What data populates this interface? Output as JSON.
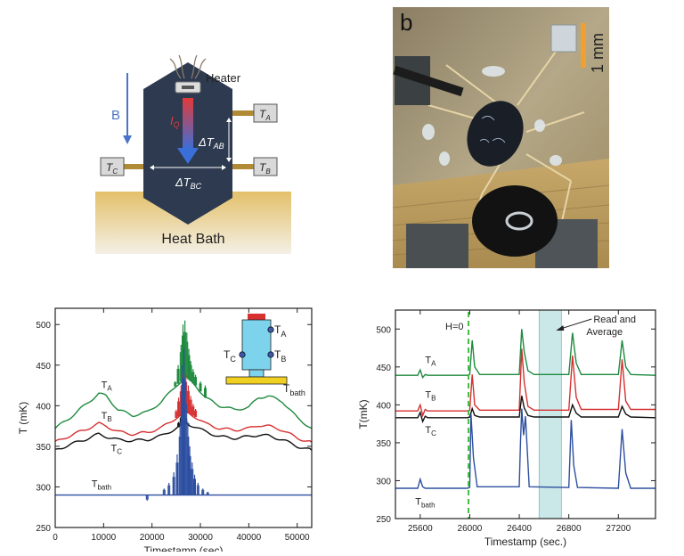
{
  "schematic": {
    "heater_label": "Heater",
    "field_label": "B",
    "heat_flow_label": "I",
    "heat_flow_sub": "Q",
    "thermometers": [
      {
        "name": "T",
        "sub": "A"
      },
      {
        "name": "T",
        "sub": "B"
      },
      {
        "name": "T",
        "sub": "C"
      }
    ],
    "delta_ab": {
      "name": "ΔT",
      "sub": "AB"
    },
    "delta_bc": {
      "name": "ΔT",
      "sub": "BC"
    },
    "heat_bath_label": "Heat Bath",
    "colors": {
      "body": "#2d3a4f",
      "arrow_top": "#e23a3a",
      "arrow_bottom": "#3a6fd8",
      "field_arrow": "#4a74c9",
      "link": "#b08a35",
      "bath_top": "#e3c06a",
      "bath_bottom": "#f4f0e6"
    }
  },
  "photo": {
    "panel_letter": "b",
    "scale_label": "1 mm",
    "colors": {
      "scale_bar": "#f0a030"
    }
  },
  "chart_data": [
    {
      "type": "line",
      "xlabel": "Timestamp (sec)",
      "ylabel": "T (mK)",
      "xlim": [
        0,
        53000
      ],
      "ylim": [
        250,
        520
      ],
      "xticks": [
        0,
        10000,
        20000,
        30000,
        40000,
        50000
      ],
      "xtick_labels": [
        "0",
        "10000",
        "20000",
        "30000",
        "40000",
        "50000"
      ],
      "yticks": [
        250,
        300,
        350,
        400,
        450,
        500
      ],
      "ytick_labels": [
        "250",
        "300",
        "350",
        "400",
        "450",
        "500"
      ],
      "inset": {
        "labels": [
          {
            "name": "T",
            "sub": "A"
          },
          {
            "name": "T",
            "sub": "C"
          },
          {
            "name": "T",
            "sub": "B"
          },
          {
            "name": "T",
            "sub": "bath"
          }
        ]
      },
      "series": [
        {
          "name": "T",
          "sub": "A",
          "color": "#1e8a3e",
          "x": [
            0,
            3000,
            6000,
            9000,
            10500,
            13000,
            16000,
            19000,
            22000,
            25000,
            27000,
            29000,
            31000,
            34000,
            37000,
            40000,
            42000,
            44000,
            47000,
            50000,
            53000
          ],
          "y": [
            372,
            385,
            400,
            415,
            412,
            395,
            388,
            392,
            405,
            425,
            435,
            425,
            410,
            400,
            395,
            398,
            410,
            412,
            405,
            385,
            372
          ],
          "peaks": [
            [
              24800,
              430
            ],
            [
              25400,
              450
            ],
            [
              26000,
              475
            ],
            [
              26400,
              500
            ],
            [
              26800,
              505
            ],
            [
              27200,
              490
            ],
            [
              27600,
              470
            ],
            [
              28000,
              455
            ],
            [
              28500,
              445
            ],
            [
              29000,
              438
            ],
            [
              30000,
              430
            ],
            [
              31000,
              425
            ]
          ],
          "label_at": [
            9500,
            422
          ]
        },
        {
          "name": "T",
          "sub": "B",
          "color": "#d63030",
          "x": [
            0,
            3000,
            6000,
            9000,
            10500,
            13000,
            16000,
            19000,
            22000,
            25000,
            27000,
            29000,
            31000,
            34000,
            37000,
            40000,
            42000,
            44000,
            47000,
            50000,
            53000
          ],
          "y": [
            355,
            363,
            370,
            378,
            375,
            368,
            365,
            367,
            373,
            385,
            392,
            386,
            378,
            372,
            370,
            372,
            376,
            375,
            370,
            360,
            355
          ],
          "peaks": [
            [
              25000,
              395
            ],
            [
              25500,
              410
            ],
            [
              26000,
              425
            ],
            [
              26500,
              440
            ],
            [
              27000,
              438
            ],
            [
              27500,
              425
            ],
            [
              28000,
              412
            ],
            [
              28500,
              402
            ],
            [
              29000,
              396
            ]
          ],
          "label_at": [
            9500,
            384
          ]
        },
        {
          "name": "T",
          "sub": "C",
          "color": "#111111",
          "x": [
            0,
            3000,
            6000,
            9000,
            10500,
            13000,
            16000,
            19000,
            22000,
            25000,
            27000,
            29000,
            31000,
            34000,
            37000,
            40000,
            42000,
            44000,
            47000,
            50000,
            53000
          ],
          "y": [
            345,
            352,
            358,
            365,
            362,
            358,
            357,
            358,
            363,
            372,
            378,
            374,
            368,
            362,
            360,
            362,
            364,
            363,
            358,
            350,
            345
          ],
          "peaks": [
            [
              25500,
              380
            ],
            [
              26000,
              388
            ],
            [
              26500,
              392
            ],
            [
              27000,
              385
            ],
            [
              27500,
              378
            ]
          ],
          "label_at": [
            11500,
            344
          ]
        },
        {
          "name": "T",
          "sub": "bath",
          "color": "#2d4fa0",
          "x": [
            0,
            53000
          ],
          "y": [
            290,
            290
          ],
          "peaks": [
            [
              22500,
              298
            ],
            [
              23500,
              305
            ],
            [
              24500,
              318
            ],
            [
              25200,
              340
            ],
            [
              25800,
              380
            ],
            [
              26200,
              450
            ],
            [
              26600,
              470
            ],
            [
              27000,
              430
            ],
            [
              27400,
              380
            ],
            [
              27800,
              350
            ],
            [
              28300,
              330
            ],
            [
              28800,
              315
            ],
            [
              29500,
              305
            ],
            [
              30500,
              298
            ],
            [
              31500,
              294
            ],
            [
              19000,
              283
            ]
          ],
          "label_at": [
            7500,
            300
          ]
        }
      ]
    },
    {
      "type": "line",
      "xlabel": "Timestamp (sec.)",
      "ylabel": "T(mK)",
      "xlim": [
        25400,
        27500
      ],
      "ylim": [
        250,
        525
      ],
      "xticks": [
        25600,
        26000,
        26400,
        26800,
        27200
      ],
      "xtick_labels": [
        "25600",
        "26000",
        "26400",
        "26800",
        "27200"
      ],
      "yticks": [
        250,
        300,
        350,
        400,
        450,
        500
      ],
      "ytick_labels": [
        "250",
        "300",
        "350",
        "400",
        "450",
        "500"
      ],
      "marker_line": {
        "label": "H=0",
        "x": 25990,
        "color": "#44bb44"
      },
      "highlight": {
        "label": "Read and Average",
        "x0": 26560,
        "x1": 26740,
        "color": "#bfe3e3"
      },
      "series": [
        {
          "name": "T",
          "sub": "A",
          "color": "#1e8a3e",
          "x": [
            25400,
            25580,
            25600,
            25620,
            25640,
            25660,
            25700,
            25980,
            26000,
            26020,
            26040,
            26080,
            26400,
            26420,
            26440,
            26470,
            26520,
            26800,
            26830,
            26860,
            26900,
            27200,
            27230,
            27260,
            27300,
            27500
          ],
          "y": [
            439,
            439,
            446,
            436,
            440,
            439,
            439,
            439,
            440,
            485,
            450,
            440,
            440,
            500,
            470,
            445,
            440,
            440,
            495,
            455,
            440,
            440,
            485,
            450,
            440,
            439
          ],
          "label_at": [
            25640,
            455
          ]
        },
        {
          "name": "T",
          "sub": "B",
          "color": "#d63030",
          "x": [
            25400,
            25580,
            25600,
            25620,
            25640,
            25660,
            25700,
            25980,
            26000,
            26020,
            26040,
            26080,
            26400,
            26420,
            26440,
            26470,
            26520,
            26800,
            26830,
            26860,
            26900,
            27200,
            27230,
            27260,
            27300,
            27500
          ],
          "y": [
            392,
            392,
            400,
            386,
            394,
            392,
            392,
            392,
            393,
            440,
            400,
            393,
            393,
            474,
            430,
            398,
            393,
            393,
            465,
            410,
            394,
            394,
            460,
            405,
            394,
            394
          ],
          "label_at": [
            25640,
            409
          ]
        },
        {
          "name": "T",
          "sub": "C",
          "color": "#111111",
          "x": [
            25400,
            25580,
            25600,
            25620,
            25640,
            25660,
            25700,
            25980,
            26000,
            26020,
            26040,
            26080,
            26400,
            26420,
            26440,
            26470,
            26520,
            26800,
            26830,
            26860,
            26900,
            27200,
            27230,
            27260,
            27300,
            27500
          ],
          "y": [
            383,
            383,
            390,
            378,
            385,
            383,
            383,
            383,
            384,
            395,
            386,
            384,
            384,
            412,
            396,
            386,
            384,
            384,
            400,
            389,
            384,
            384,
            398,
            388,
            384,
            383
          ],
          "label_at": [
            25640,
            363
          ]
        },
        {
          "name": "T",
          "sub": "bath",
          "color": "#2d4fa0",
          "x": [
            25400,
            25580,
            25600,
            25620,
            25640,
            25700,
            25980,
            26000,
            26010,
            26030,
            26060,
            26400,
            26410,
            26420,
            26435,
            26450,
            26480,
            26800,
            26820,
            26840,
            26870,
            27200,
            27230,
            27260,
            27300,
            27500
          ],
          "y": [
            290,
            290,
            302,
            292,
            290,
            290,
            290,
            291,
            388,
            330,
            292,
            292,
            350,
            395,
            360,
            385,
            292,
            291,
            380,
            320,
            291,
            290,
            368,
            310,
            290,
            290
          ],
          "label_at": [
            25560,
            268
          ]
        }
      ]
    }
  ]
}
